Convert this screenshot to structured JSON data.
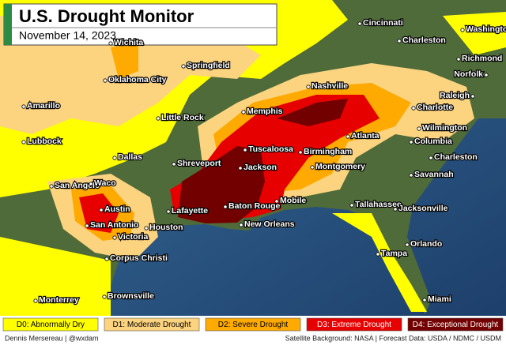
{
  "header": {
    "title": "U.S. Drought Monitor",
    "date": "November 14, 2023"
  },
  "cities": [
    "Cincinnati",
    "Washington",
    "Charleston",
    "Wichita",
    "Springfield",
    "Richmond",
    "Norfolk",
    "Nashville",
    "Oklahoma City",
    "Raleigh",
    "Amarillo",
    "Memphis",
    "Charlotte",
    "Little Rock",
    "Wilmington",
    "Atlanta",
    "Lubbock",
    "Columbia",
    "Tuscaloosa",
    "Birmingham",
    "Dallas",
    "Charleston",
    "Shreveport",
    "Jackson",
    "Montgomery",
    "Savannah",
    "San Angelo",
    "Waco",
    "Mobile",
    "Tallahassee",
    "Jacksonville",
    "Baton Rouge",
    "Lafayette",
    "Austin",
    "New Orleans",
    "Houston",
    "San Antonio",
    "Victoria",
    "Orlando",
    "Tampa",
    "Corpus Christi",
    "Brownsville",
    "Monterrey",
    "Miami"
  ],
  "legend": [
    {
      "label": "D0: Abnormally Dry",
      "color": "#ffff00"
    },
    {
      "label": "D1: Moderate Drought",
      "color": "#fcd37f"
    },
    {
      "label": "D2: Severe Drought",
      "color": "#ffaa00"
    },
    {
      "label": "D3: Extreme Drought",
      "color": "#e60000"
    },
    {
      "label": "D4: Exceptional Drought",
      "color": "#730000"
    }
  ],
  "credits": {
    "author": "Dennis Mersereau | @wxdam",
    "sources": "Satellite Background: NASA | Forecast Data: USDA / NDMC / USDM"
  }
}
